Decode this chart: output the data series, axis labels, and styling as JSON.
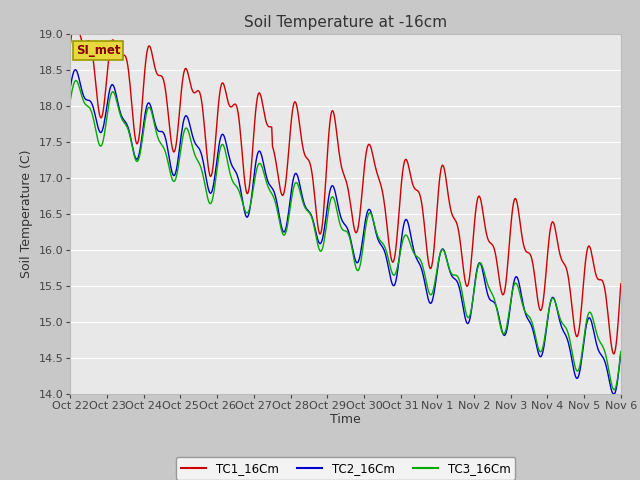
{
  "title": "Soil Temperature at -16cm",
  "xlabel": "Time",
  "ylabel": "Soil Temperature (C)",
  "ylim": [
    14.0,
    19.0
  ],
  "yticks": [
    14.0,
    14.5,
    15.0,
    15.5,
    16.0,
    16.5,
    17.0,
    17.5,
    18.0,
    18.5,
    19.0
  ],
  "xtick_labels": [
    "Oct 22",
    "Oct 23",
    "Oct 24",
    "Oct 25",
    "Oct 26",
    "Oct 27",
    "Oct 28",
    "Oct 29",
    "Oct 30",
    "Oct 31",
    "Nov 1",
    "Nov 2",
    "Nov 3",
    "Nov 4",
    "Nov 5",
    "Nov 6"
  ],
  "line_colors": [
    "#cc0000",
    "#0000cc",
    "#00aa00"
  ],
  "line_labels": [
    "TC1_16Cm",
    "TC2_16Cm",
    "TC3_16Cm"
  ],
  "legend_box_color": "#e8d840",
  "legend_box_text": "SI_met",
  "plot_bg_color": "#e8e8e8",
  "grid_color": "#ffffff",
  "title_fontsize": 11,
  "label_fontsize": 9,
  "tick_fontsize": 8
}
